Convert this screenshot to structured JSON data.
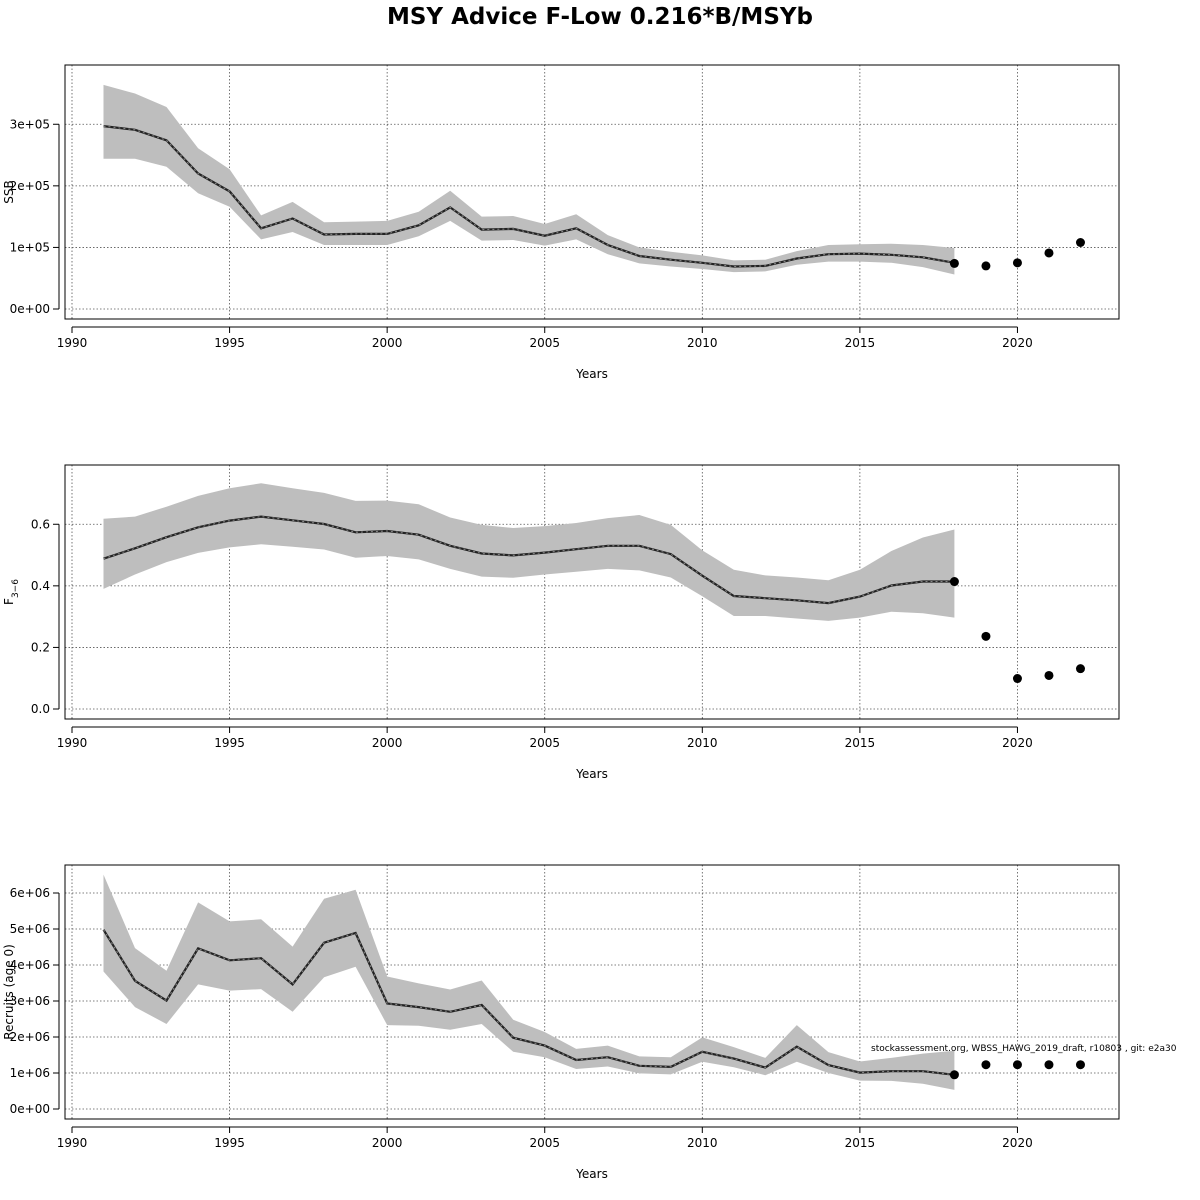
{
  "title": "MSY Advice F-Low 0.216*B/MSYb",
  "footnote": "stockassessment.org, WBSS_HAWG_2019_draft, r10803 , git: e2a30",
  "colors": {
    "band": "#bebebe",
    "line": "#222222",
    "grid": "#555555",
    "point": "#000000"
  },
  "chart_data": [
    {
      "type": "line",
      "id": "ssb",
      "ylabel": "SSB",
      "xlabel": "Years",
      "xlim": [
        1990,
        2023
      ],
      "ylim": [
        0,
        380000
      ],
      "xticks": [
        1990,
        1995,
        2000,
        2005,
        2010,
        2015,
        2020
      ],
      "xtick_labels": [
        "1990",
        "1995",
        "2000",
        "2005",
        "2010",
        "2015",
        "2020"
      ],
      "yticks": [
        0,
        100000,
        200000,
        300000
      ],
      "ytick_labels": [
        "0e+00",
        "1e+05",
        "2e+05",
        "3e+05"
      ],
      "grid": true,
      "x": [
        1991,
        1992,
        1993,
        1994,
        1995,
        1996,
        1997,
        1998,
        1999,
        2000,
        2001,
        2002,
        2003,
        2004,
        2005,
        2006,
        2007,
        2008,
        2009,
        2010,
        2011,
        2012,
        2013,
        2014,
        2015,
        2016,
        2017,
        2018
      ],
      "estimate": [
        297000,
        291000,
        274000,
        220000,
        191000,
        131000,
        147000,
        121000,
        122000,
        122000,
        136000,
        165000,
        129000,
        130000,
        119000,
        131000,
        104000,
        86000,
        80000,
        75000,
        69000,
        70000,
        82000,
        89000,
        90000,
        88000,
        84000,
        75000
      ],
      "lower": [
        244000,
        244000,
        231000,
        188000,
        166000,
        113000,
        125000,
        104000,
        104000,
        104000,
        118000,
        143000,
        111000,
        112000,
        103000,
        113000,
        89000,
        74000,
        69000,
        65000,
        60000,
        61000,
        72000,
        77000,
        77000,
        75000,
        68000,
        56000
      ],
      "upper": [
        364000,
        350000,
        328000,
        261000,
        227000,
        152000,
        174000,
        141000,
        142000,
        143000,
        158000,
        192000,
        150000,
        151000,
        138000,
        154000,
        120000,
        100000,
        93000,
        87000,
        79000,
        80000,
        94000,
        104000,
        105000,
        106000,
        104000,
        99000
      ],
      "forecast_x": [
        2018,
        2019,
        2020,
        2021,
        2022
      ],
      "forecast_y": [
        74000,
        70000,
        75000,
        91000,
        108000
      ]
    },
    {
      "type": "line",
      "id": "fbar",
      "ylabel": "F",
      "ylabel_sub": "3−6",
      "xlabel": "Years",
      "xlim": [
        1990,
        2023
      ],
      "ylim": [
        0,
        0.76
      ],
      "xticks": [
        1990,
        1995,
        2000,
        2005,
        2010,
        2015,
        2020
      ],
      "xtick_labels": [
        "1990",
        "1995",
        "2000",
        "2005",
        "2010",
        "2015",
        "2020"
      ],
      "yticks": [
        0,
        0.2,
        0.4,
        0.6
      ],
      "ytick_labels": [
        "0.0",
        "0.2",
        "0.4",
        "0.6"
      ],
      "grid": true,
      "x": [
        1991,
        1992,
        1993,
        1994,
        1995,
        1996,
        1997,
        1998,
        1999,
        2000,
        2001,
        2002,
        2003,
        2004,
        2005,
        2006,
        2007,
        2008,
        2009,
        2010,
        2011,
        2012,
        2013,
        2014,
        2015,
        2016,
        2017,
        2018
      ],
      "estimate": [
        0.488,
        0.522,
        0.558,
        0.59,
        0.612,
        0.625,
        0.613,
        0.601,
        0.574,
        0.578,
        0.566,
        0.53,
        0.505,
        0.499,
        0.508,
        0.519,
        0.53,
        0.53,
        0.503,
        0.433,
        0.367,
        0.36,
        0.353,
        0.344,
        0.365,
        0.401,
        0.414,
        0.414
      ],
      "lower": [
        0.39,
        0.437,
        0.477,
        0.507,
        0.525,
        0.535,
        0.527,
        0.518,
        0.491,
        0.497,
        0.486,
        0.455,
        0.43,
        0.426,
        0.437,
        0.446,
        0.455,
        0.45,
        0.427,
        0.366,
        0.302,
        0.302,
        0.294,
        0.286,
        0.297,
        0.316,
        0.311,
        0.297
      ],
      "upper": [
        0.618,
        0.625,
        0.657,
        0.692,
        0.717,
        0.733,
        0.717,
        0.702,
        0.676,
        0.677,
        0.665,
        0.622,
        0.598,
        0.588,
        0.594,
        0.604,
        0.62,
        0.63,
        0.598,
        0.515,
        0.452,
        0.434,
        0.427,
        0.418,
        0.452,
        0.513,
        0.557,
        0.583
      ],
      "forecast_x": [
        2018,
        2019,
        2020,
        2021,
        2022
      ],
      "forecast_y": [
        0.414,
        0.236,
        0.099,
        0.109,
        0.131
      ]
    },
    {
      "type": "line",
      "id": "recruits",
      "ylabel": "Recruits (age 0)",
      "xlabel": "Years",
      "xlim": [
        1990,
        2023
      ],
      "ylim": [
        0,
        6500000
      ],
      "xticks": [
        1990,
        1995,
        2000,
        2005,
        2010,
        2015,
        2020
      ],
      "xtick_labels": [
        "1990",
        "1995",
        "2000",
        "2005",
        "2010",
        "2015",
        "2020"
      ],
      "yticks": [
        0,
        1000000,
        2000000,
        3000000,
        4000000,
        5000000,
        6000000
      ],
      "ytick_labels": [
        "0e+00",
        "1e+06",
        "2e+06",
        "3e+06",
        "4e+06",
        "5e+06",
        "6e+06"
      ],
      "grid": true,
      "x": [
        1991,
        1992,
        1993,
        1994,
        1995,
        1996,
        1997,
        1998,
        1999,
        2000,
        2001,
        2002,
        2003,
        2004,
        2005,
        2006,
        2007,
        2008,
        2009,
        2010,
        2011,
        2012,
        2013,
        2014,
        2015,
        2016,
        2017,
        2018
      ],
      "estimate": [
        4980000,
        3560000,
        3010000,
        4460000,
        4130000,
        4190000,
        3460000,
        4620000,
        4890000,
        2930000,
        2830000,
        2700000,
        2890000,
        1980000,
        1760000,
        1360000,
        1440000,
        1200000,
        1170000,
        1590000,
        1400000,
        1150000,
        1730000,
        1220000,
        1010000,
        1050000,
        1050000,
        950000
      ],
      "lower": [
        3820000,
        2830000,
        2360000,
        3460000,
        3290000,
        3330000,
        2700000,
        3660000,
        3950000,
        2330000,
        2310000,
        2200000,
        2360000,
        1590000,
        1440000,
        1110000,
        1180000,
        990000,
        960000,
        1310000,
        1160000,
        940000,
        1310000,
        1000000,
        790000,
        780000,
        700000,
        530000
      ],
      "upper": [
        6510000,
        4470000,
        3840000,
        5740000,
        5210000,
        5270000,
        4510000,
        5840000,
        6090000,
        3680000,
        3490000,
        3320000,
        3570000,
        2480000,
        2140000,
        1670000,
        1760000,
        1460000,
        1440000,
        1990000,
        1720000,
        1420000,
        2330000,
        1580000,
        1320000,
        1420000,
        1540000,
        1620000
      ],
      "forecast_x": [
        2018,
        2019,
        2020,
        2021,
        2022
      ],
      "forecast_y": [
        950000,
        1230000,
        1230000,
        1230000,
        1230000
      ]
    }
  ]
}
